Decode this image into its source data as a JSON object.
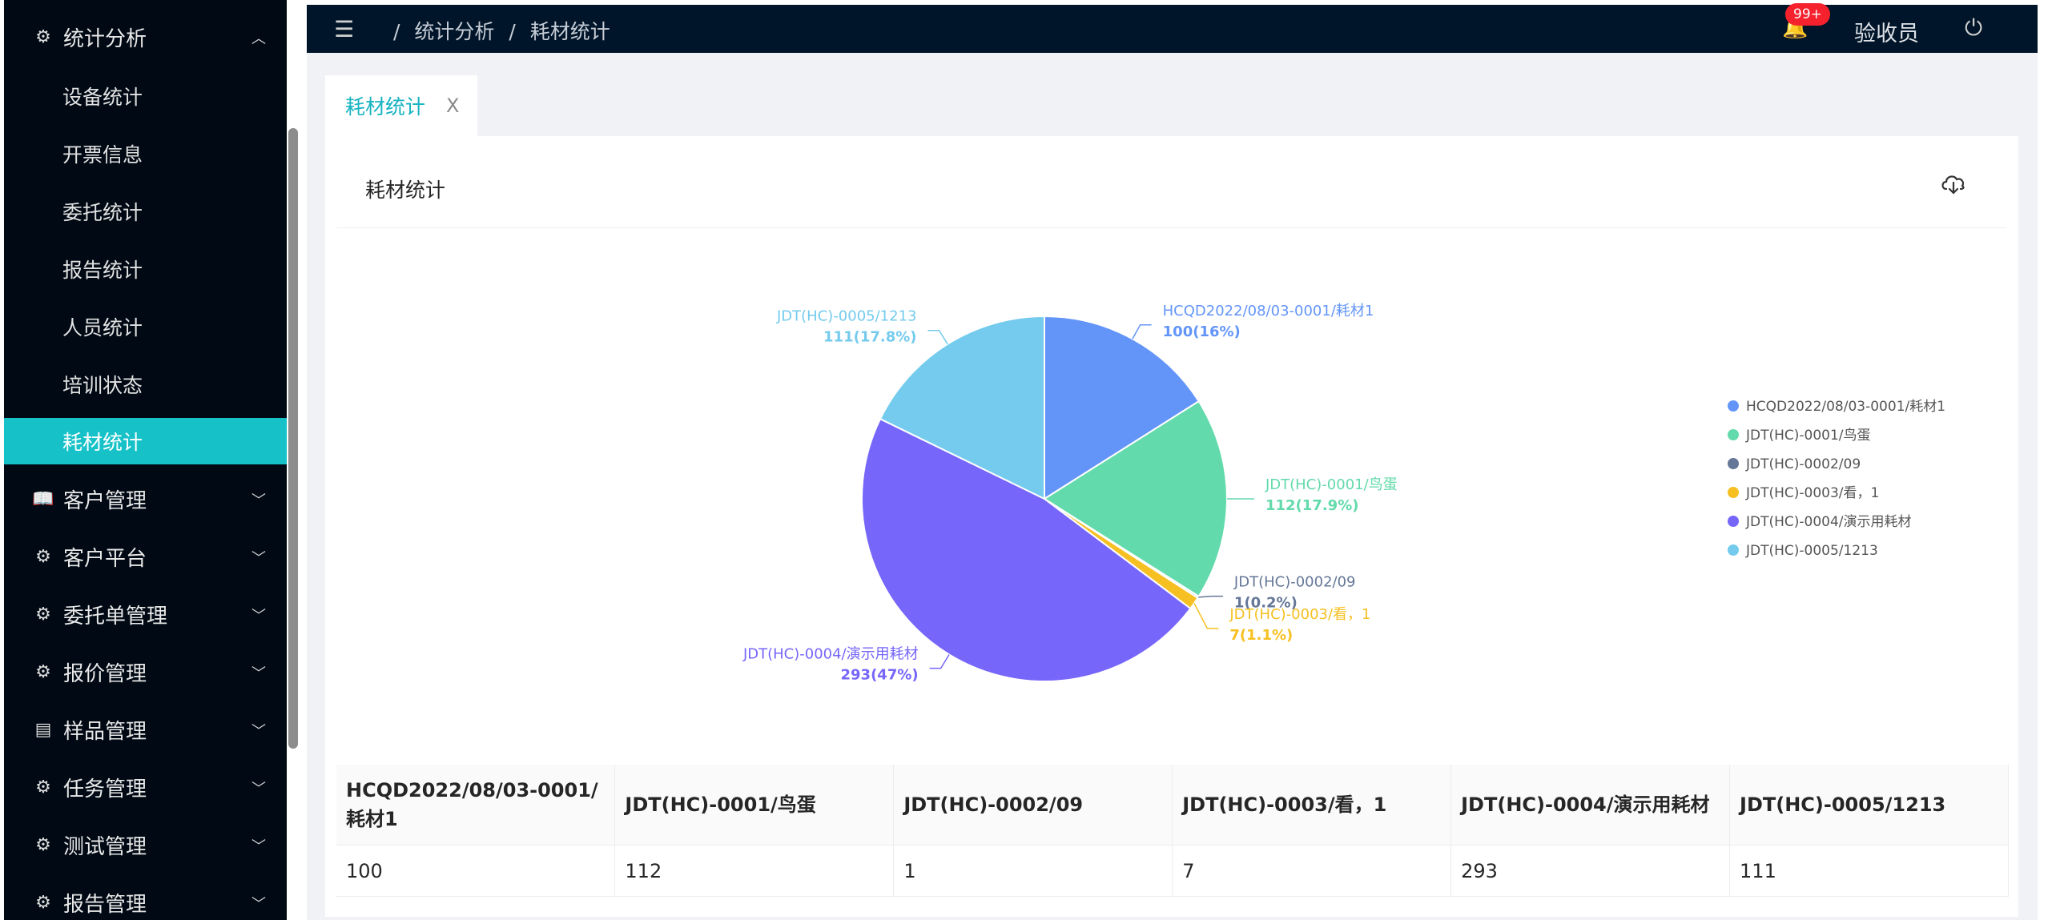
{
  "sidebar": {
    "group_statistics": "统计分析",
    "sub_items": [
      "设备统计",
      "开票信息",
      "委托统计",
      "报告统计",
      "人员统计",
      "培训状态",
      "耗材统计"
    ],
    "active_item": "耗材统计",
    "groups": [
      "客户管理",
      "客户平台",
      "委托单管理",
      "报价管理",
      "样品管理",
      "任务管理",
      "测试管理",
      "报告管理"
    ]
  },
  "header": {
    "breadcrumb": [
      "统计分析",
      "耗材统计"
    ],
    "notification_badge": "99+",
    "username": "验收员"
  },
  "tabs": [
    {
      "label": "耗材统计",
      "close": "X"
    }
  ],
  "card": {
    "title": "耗材统计"
  },
  "colors": {
    "accent": "#16c1c8",
    "header_bg": "#001529",
    "sidebar_bg": "#000914",
    "series": [
      "#6395f9",
      "#62daab",
      "#657798",
      "#f6c022",
      "#7666f9",
      "#74cbed"
    ]
  },
  "chart_data": {
    "type": "pie",
    "labels": [
      "HCQD2022/08/03-0001/耗材1",
      "JDT(HC)-0001/鸟蛋",
      "JDT(HC)-0002/09",
      "JDT(HC)-0003/看，1",
      "JDT(HC)-0004/演示用耗材",
      "JDT(HC)-0005/1213"
    ],
    "values": [
      100,
      112,
      1,
      7,
      293,
      111
    ],
    "value_labels": [
      "100(16%)",
      "112(17.9%)",
      "1(0.2%)",
      "7(1.1%)",
      "293(47%)",
      "111(17.8%)"
    ],
    "legend_position": "right"
  },
  "table": {
    "headers": [
      "HCQD2022/08/03-0001/耗材1",
      "JDT(HC)-0001/鸟蛋",
      "JDT(HC)-0002/09",
      "JDT(HC)-0003/看，1",
      "JDT(HC)-0004/演示用耗材",
      "JDT(HC)-0005/1213"
    ],
    "rows": [
      [
        "100",
        "112",
        "1",
        "7",
        "293",
        "111"
      ]
    ]
  }
}
